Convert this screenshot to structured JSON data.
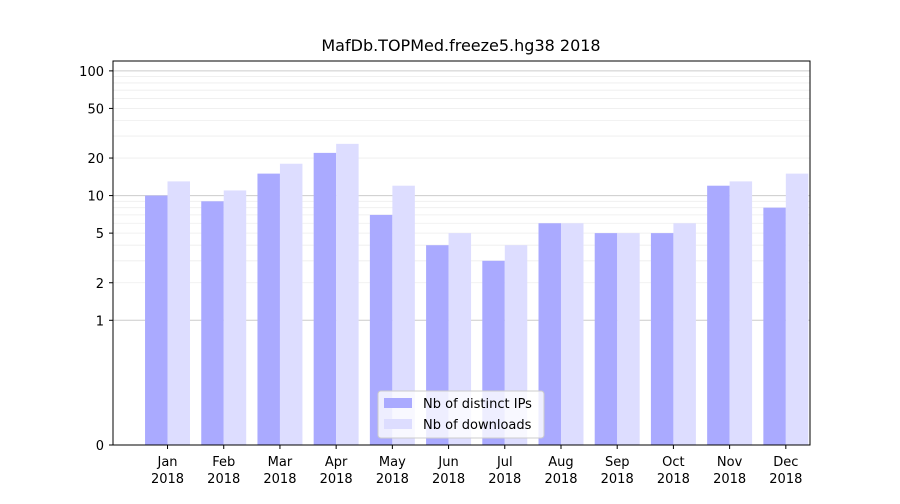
{
  "chart_data": {
    "type": "bar",
    "title": "MafDb.TOPMed.freeze5.hg38 2018",
    "xlabel": "",
    "ylabel": "",
    "y_scale": "symlog",
    "ylim": [
      0,
      120
    ],
    "y_ticks": [
      0,
      1,
      2,
      5,
      10,
      20,
      50,
      100
    ],
    "grid": "horizontal",
    "legend_position": "bottom-center",
    "categories": [
      [
        "Jan",
        "2018"
      ],
      [
        "Feb",
        "2018"
      ],
      [
        "Mar",
        "2018"
      ],
      [
        "Apr",
        "2018"
      ],
      [
        "May",
        "2018"
      ],
      [
        "Jun",
        "2018"
      ],
      [
        "Jul",
        "2018"
      ],
      [
        "Aug",
        "2018"
      ],
      [
        "Sep",
        "2018"
      ],
      [
        "Oct",
        "2018"
      ],
      [
        "Nov",
        "2018"
      ],
      [
        "Dec",
        "2018"
      ]
    ],
    "series": [
      {
        "name": "Nb of distinct IPs",
        "color": "#aaaaff",
        "values": [
          10,
          9,
          15,
          22,
          7,
          4,
          3,
          6,
          5,
          5,
          12,
          8
        ]
      },
      {
        "name": "Nb of downloads",
        "color": "#ddddff",
        "values": [
          13,
          11,
          18,
          26,
          12,
          5,
          4,
          6,
          5,
          6,
          13,
          15
        ]
      }
    ]
  }
}
